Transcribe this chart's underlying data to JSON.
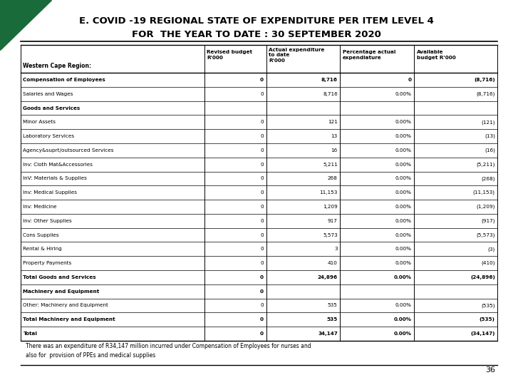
{
  "title_line1": "E. COVID -19 REGIONAL STATE OF EXPENDITURE PER ITEM LEVEL 4",
  "title_line2": "FOR  THE YEAR TO DATE : 30 SEPTEMBER 2020",
  "rows": [
    {
      "label": "Compensation of Employees",
      "bold": true,
      "rev": "0",
      "actual": "8,716",
      "pct": "0",
      "avail": "(8,716)"
    },
    {
      "label": "Salaries and Wages",
      "bold": false,
      "rev": "0",
      "actual": "8,716",
      "pct": "0.00%",
      "avail": "(8,716)"
    },
    {
      "label": "Goods and Services",
      "bold": true,
      "rev": "",
      "actual": "",
      "pct": "",
      "avail": ""
    },
    {
      "label": "Minor Assets",
      "bold": false,
      "rev": "0",
      "actual": "121",
      "pct": "0.00%",
      "avail": "(121)"
    },
    {
      "label": "Laboratory Services",
      "bold": false,
      "rev": "0",
      "actual": "13",
      "pct": "0.00%",
      "avail": "(13)"
    },
    {
      "label": "Agency&suprt/outsourced Services",
      "bold": false,
      "rev": "0",
      "actual": "16",
      "pct": "0.00%",
      "avail": "(16)"
    },
    {
      "label": "Inv: Cloth Mat&Accessories",
      "bold": false,
      "rev": "0",
      "actual": "5,211",
      "pct": "0.00%",
      "avail": "(5,211)"
    },
    {
      "label": "InV: Materials & Supplies",
      "bold": false,
      "rev": "0",
      "actual": "268",
      "pct": "0.00%",
      "avail": "(268)"
    },
    {
      "label": "Inv: Medical Supplies",
      "bold": false,
      "rev": "0",
      "actual": "11,153",
      "pct": "0.00%",
      "avail": "(11,153)"
    },
    {
      "label": "Inv: Medicine",
      "bold": false,
      "rev": "0",
      "actual": "1,209",
      "pct": "0.00%",
      "avail": "(1,209)"
    },
    {
      "label": "Inv: Other Supplies",
      "bold": false,
      "rev": "0",
      "actual": "917",
      "pct": "0.00%",
      "avail": "(917)"
    },
    {
      "label": "Cons Supplies",
      "bold": false,
      "rev": "0",
      "actual": "5,573",
      "pct": "0.00%",
      "avail": "(5,573)"
    },
    {
      "label": "Rental & Hiring",
      "bold": false,
      "rev": "0",
      "actual": "3",
      "pct": "0.00%",
      "avail": "(3)"
    },
    {
      "label": "Property Payments",
      "bold": false,
      "rev": "0",
      "actual": "410",
      "pct": "0.00%",
      "avail": "(410)"
    },
    {
      "label": "Total Goods and Services",
      "bold": true,
      "rev": "0",
      "actual": "24,896",
      "pct": "0.00%",
      "avail": "(24,896)"
    },
    {
      "label": "Machinery and Equipment",
      "bold": true,
      "rev": "0",
      "actual": "",
      "pct": "",
      "avail": ""
    },
    {
      "label": "Other: Machinery and Equipment",
      "bold": false,
      "rev": "0",
      "actual": "535",
      "pct": "0.00%",
      "avail": "(535)"
    },
    {
      "label": "Total Machinery and Equipment",
      "bold": true,
      "rev": "0",
      "actual": "535",
      "pct": "0.00%",
      "avail": "(535)"
    },
    {
      "label": "Total",
      "bold": true,
      "rev": "0",
      "actual": "34,147",
      "pct": "0.00%",
      "avail": "(34,147)"
    }
  ],
  "footnote1": "There was an expenditure of R34,147 million incurred under Compensation of Employees for nurses and",
  "footnote2": "also for  provision of PPEs and medical supplies",
  "page_num": "36",
  "triangle_color": "#1a6b3a"
}
